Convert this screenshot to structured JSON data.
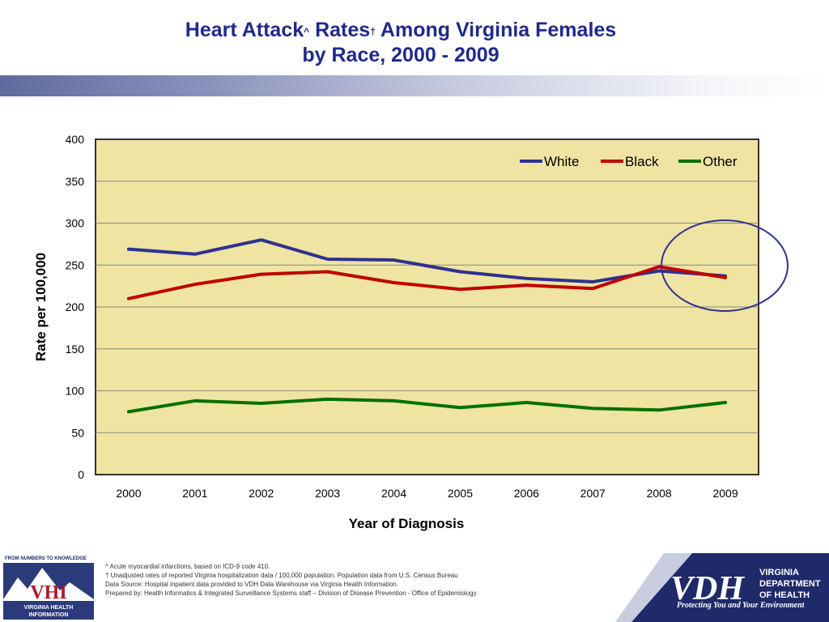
{
  "slide": {
    "title_line1_a": "Heart Attack",
    "title_sup1": "^",
    "title_line1_b": " Rates",
    "title_sup2": "†",
    "title_line1_c": " Among Virginia Females",
    "title_line2": "by Race, 2000 - 2009"
  },
  "chart_data": {
    "type": "line",
    "x": [
      "2000",
      "2001",
      "2002",
      "2003",
      "2004",
      "2005",
      "2006",
      "2007",
      "2008",
      "2009"
    ],
    "series": [
      {
        "name": "White",
        "color": "#2e3192",
        "values": [
          269,
          263,
          280,
          257,
          256,
          242,
          234,
          230,
          243,
          237
        ]
      },
      {
        "name": "Black",
        "color": "#c00000",
        "values": [
          210,
          227,
          239,
          242,
          229,
          221,
          226,
          222,
          248,
          235
        ]
      },
      {
        "name": "Other",
        "color": "#007000",
        "values": [
          75,
          88,
          85,
          90,
          88,
          80,
          86,
          79,
          77,
          86
        ]
      }
    ],
    "xlabel": "Year of Diagnosis",
    "ylabel": "Rate per 100,000",
    "ylim": [
      0,
      400
    ],
    "yticks": [
      0,
      50,
      100,
      150,
      200,
      250,
      300,
      350,
      400
    ],
    "grid": true,
    "legend": "top-right",
    "plot_bg": "#efe4a2",
    "annotation": "circle around 2008-2009"
  },
  "footer": {
    "vhi_top": "FROM NUMBERS TO KNOWLEDGE",
    "vhi_mark": "VHI",
    "vhi_name1": "VIRGINIA HEALTH",
    "vhi_name2": "INFORMATION",
    "note1": "^  Acute myocardial infarctions, based on ICD-9 code 410.",
    "note2": "† Unadjusted rates of reported Virginia hospitalization data / 100,000 population.  Population data from U.S. Census Bureau",
    "note3": "Data Source: Hospital inpatient data provided to VDH Data Warehouse via Virginia Health Information.",
    "note4": "Prepared by:  Health Informatics & Integrated Surveillance Systems staff – Division of Disease Prevention - Office of Epidemiology",
    "vdh_mark": "VDH",
    "vdh_name1": "VIRGINIA",
    "vdh_name2": "DEPARTMENT",
    "vdh_name3": "OF HEALTH",
    "vdh_tagline": "Protecting You and Your Environment"
  }
}
